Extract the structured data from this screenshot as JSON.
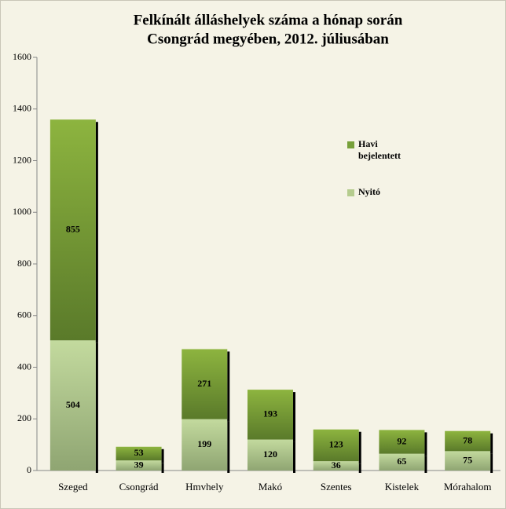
{
  "chart_data": {
    "type": "stacked_bar",
    "title": [
      "Felkínált álláshelyek száma a hónap során",
      "Csongrád megyében, 2012. júliusában"
    ],
    "categories": [
      "Szeged",
      "Csongrád",
      "Hmvhely",
      "Makó",
      "Szentes",
      "Kistelek",
      "Mórahalom"
    ],
    "series": [
      {
        "name": "Nyitó",
        "color": "#b5cc8e",
        "values": [
          504,
          39,
          199,
          120,
          36,
          65,
          75
        ]
      },
      {
        "name": "Havi bejelentett",
        "color": "#77a03a",
        "values": [
          855,
          53,
          271,
          193,
          123,
          92,
          78
        ]
      }
    ],
    "ylim": [
      0,
      1600
    ],
    "yticks": [
      0,
      200,
      400,
      600,
      800,
      1000,
      1200,
      1400,
      1600
    ],
    "grid": false
  }
}
